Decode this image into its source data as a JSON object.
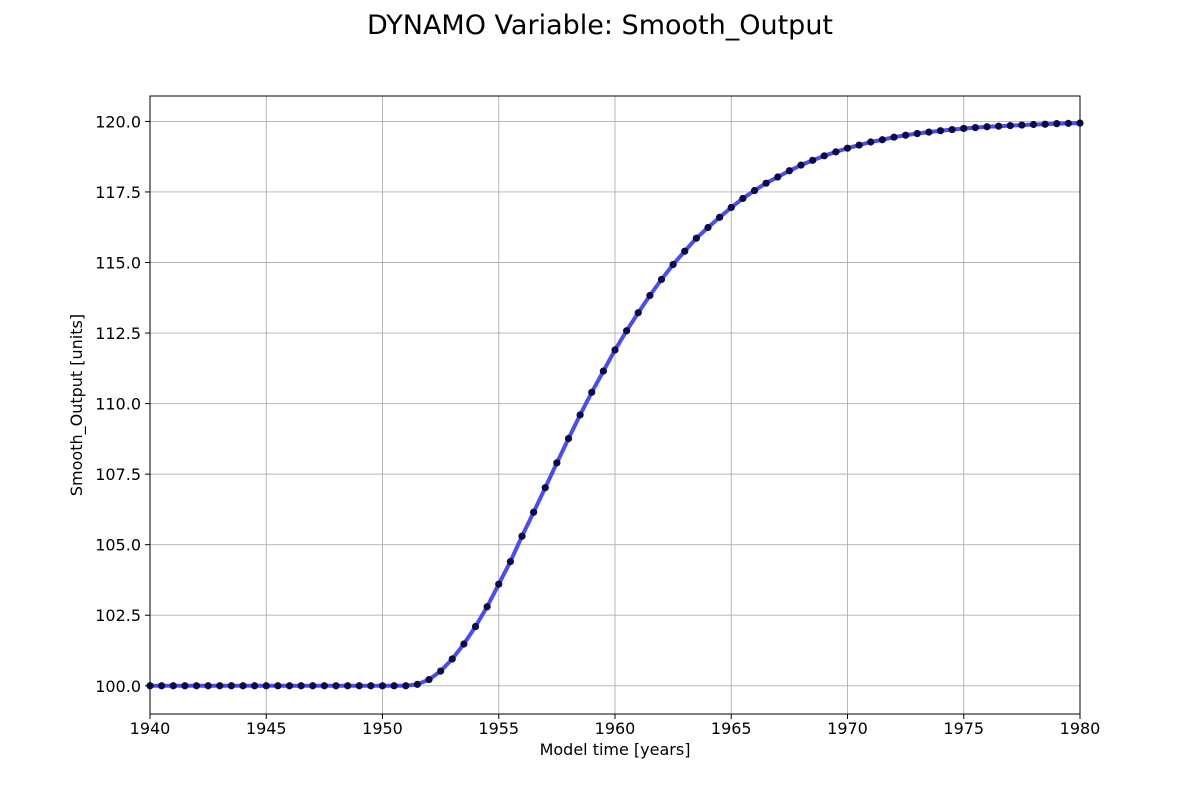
{
  "chart_data": {
    "type": "line",
    "title": "DYNAMO Variable: Smooth_Output",
    "xlabel": "Model time [years]",
    "ylabel": "Smooth_Output [units]",
    "xlim": [
      1940,
      1980
    ],
    "ylim": [
      99.0,
      120.9
    ],
    "x_ticks": [
      "1940",
      "1945",
      "1950",
      "1955",
      "1960",
      "1965",
      "1970",
      "1975",
      "1980"
    ],
    "y_ticks": [
      "100.0",
      "102.5",
      "105.0",
      "107.5",
      "110.0",
      "112.5",
      "115.0",
      "117.5",
      "120.0"
    ],
    "grid": true,
    "line_color": "#3a3ae6",
    "marker_color": "#0b0b4a",
    "series": [
      {
        "x": [
          1940.0,
          1940.5,
          1941.0,
          1941.5,
          1942.0,
          1942.5,
          1943.0,
          1943.5,
          1944.0,
          1944.5,
          1945.0,
          1945.5,
          1946.0,
          1946.5,
          1947.0,
          1947.5,
          1948.0,
          1948.5,
          1949.0,
          1949.5,
          1950.0,
          1950.5,
          1951.0,
          1951.5,
          1952.0,
          1952.5,
          1953.0,
          1953.5,
          1954.0,
          1954.5,
          1955.0,
          1955.5,
          1956.0,
          1956.5,
          1957.0,
          1957.5,
          1958.0,
          1958.5,
          1959.0,
          1959.5,
          1960.0,
          1960.5,
          1961.0,
          1961.5,
          1962.0,
          1962.5,
          1963.0,
          1963.5,
          1964.0,
          1964.5,
          1965.0,
          1965.5,
          1966.0,
          1966.5,
          1967.0,
          1967.5,
          1968.0,
          1968.5,
          1969.0,
          1969.5,
          1970.0,
          1970.5,
          1971.0,
          1971.5,
          1972.0,
          1972.5,
          1973.0,
          1973.5,
          1974.0,
          1974.5,
          1975.0,
          1975.5,
          1976.0,
          1976.5,
          1977.0,
          1977.5,
          1978.0,
          1978.5,
          1979.0,
          1979.5,
          1980.0
        ],
        "y": [
          100.0,
          100.0,
          100.0,
          100.0,
          100.0,
          100.0,
          100.0,
          100.0,
          100.0,
          100.0,
          100.0,
          100.0,
          100.0,
          100.0,
          100.0,
          100.0,
          100.0,
          100.0,
          100.0,
          100.0,
          100.0,
          100.0,
          100.0,
          100.05,
          100.22,
          100.52,
          100.95,
          101.48,
          102.1,
          102.8,
          103.6,
          104.4,
          105.3,
          106.15,
          107.02,
          107.9,
          108.76,
          109.6,
          110.4,
          111.15,
          111.9,
          112.58,
          113.22,
          113.83,
          114.4,
          114.93,
          115.4,
          115.86,
          116.24,
          116.6,
          116.95,
          117.27,
          117.55,
          117.81,
          118.03,
          118.25,
          118.45,
          118.62,
          118.78,
          118.92,
          119.05,
          119.16,
          119.27,
          119.35,
          119.44,
          119.51,
          119.57,
          119.62,
          119.67,
          119.71,
          119.75,
          119.78,
          119.81,
          119.83,
          119.85,
          119.87,
          119.89,
          119.9,
          119.92,
          119.93,
          119.94
        ]
      }
    ]
  }
}
